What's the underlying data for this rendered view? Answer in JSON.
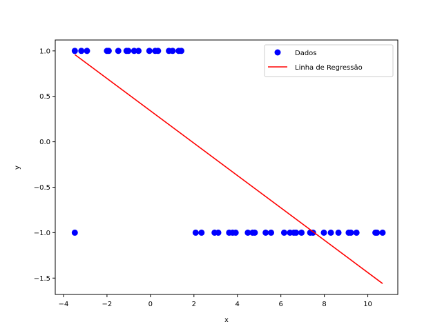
{
  "chart_data": {
    "type": "scatter",
    "xlabel": "x",
    "ylabel": "y",
    "xlim": [
      -4.38,
      11.38
    ],
    "ylim": [
      -1.68,
      1.12
    ],
    "xticks": [
      -4,
      -2,
      0,
      2,
      4,
      6,
      8,
      10
    ],
    "yticks": [
      -1.5,
      -1.0,
      -0.5,
      0.0,
      0.5,
      1.0
    ],
    "xtick_labels": [
      "−4",
      "−2",
      "0",
      "2",
      "4",
      "6",
      "8",
      "10"
    ],
    "ytick_labels": [
      "−1.5",
      "−1.0",
      "−0.5",
      "0.0",
      "0.5",
      "1.0"
    ],
    "grid": false,
    "legend_position": "top-right",
    "series": [
      {
        "name": "Dados",
        "kind": "scatter",
        "color": "#0000ff",
        "points": [
          [
            -3.48,
            1
          ],
          [
            -3.18,
            1
          ],
          [
            -2.92,
            1
          ],
          [
            -2.0,
            1
          ],
          [
            -1.92,
            1
          ],
          [
            -1.48,
            1
          ],
          [
            -1.1,
            1
          ],
          [
            -1.02,
            1
          ],
          [
            -0.75,
            1
          ],
          [
            -0.55,
            1
          ],
          [
            -0.05,
            1
          ],
          [
            0.22,
            1
          ],
          [
            0.35,
            1
          ],
          [
            0.85,
            1
          ],
          [
            1.02,
            1
          ],
          [
            1.3,
            1
          ],
          [
            1.42,
            1
          ],
          [
            -3.48,
            -1
          ],
          [
            2.08,
            -1
          ],
          [
            2.35,
            -1
          ],
          [
            2.95,
            -1
          ],
          [
            3.12,
            -1
          ],
          [
            3.62,
            -1
          ],
          [
            3.78,
            -1
          ],
          [
            3.92,
            -1
          ],
          [
            4.48,
            -1
          ],
          [
            4.7,
            -1
          ],
          [
            4.8,
            -1
          ],
          [
            5.3,
            -1
          ],
          [
            5.55,
            -1
          ],
          [
            6.15,
            -1
          ],
          [
            6.42,
            -1
          ],
          [
            6.6,
            -1
          ],
          [
            6.7,
            -1
          ],
          [
            6.95,
            -1
          ],
          [
            7.35,
            -1
          ],
          [
            7.48,
            -1
          ],
          [
            7.98,
            -1
          ],
          [
            8.3,
            -1
          ],
          [
            8.65,
            -1
          ],
          [
            9.12,
            -1
          ],
          [
            9.22,
            -1
          ],
          [
            9.48,
            -1
          ],
          [
            10.35,
            -1
          ],
          [
            10.42,
            -1
          ],
          [
            10.68,
            -1
          ]
        ]
      },
      {
        "name": "Linha de Regressão",
        "kind": "line",
        "color": "#ff0000",
        "x": [
          -3.48,
          10.68
        ],
        "y": [
          0.96,
          -1.56
        ]
      }
    ]
  }
}
